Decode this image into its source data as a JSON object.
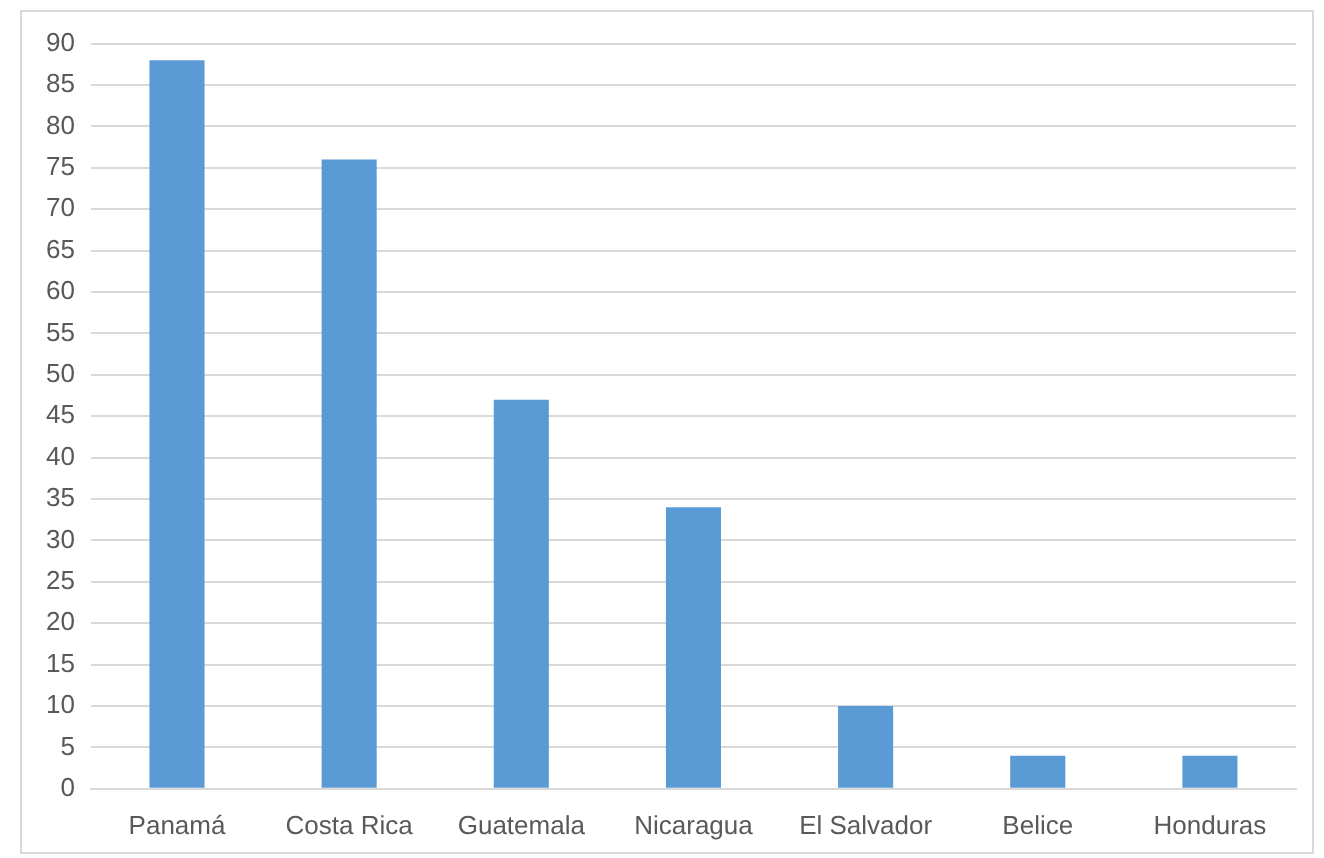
{
  "chart_data": {
    "type": "bar",
    "categories": [
      "Panamá",
      "Costa Rica",
      "Guatemala",
      "Nicaragua",
      "El Salvador",
      "Belice",
      "Honduras"
    ],
    "values": [
      88,
      76,
      47,
      34,
      10,
      4,
      4
    ],
    "color": "#5b9bd5",
    "ylim": [
      0,
      90
    ],
    "yticks": [
      0,
      5,
      10,
      15,
      20,
      25,
      30,
      35,
      40,
      45,
      50,
      55,
      60,
      65,
      70,
      75,
      80,
      85,
      90
    ],
    "grid": "y"
  }
}
